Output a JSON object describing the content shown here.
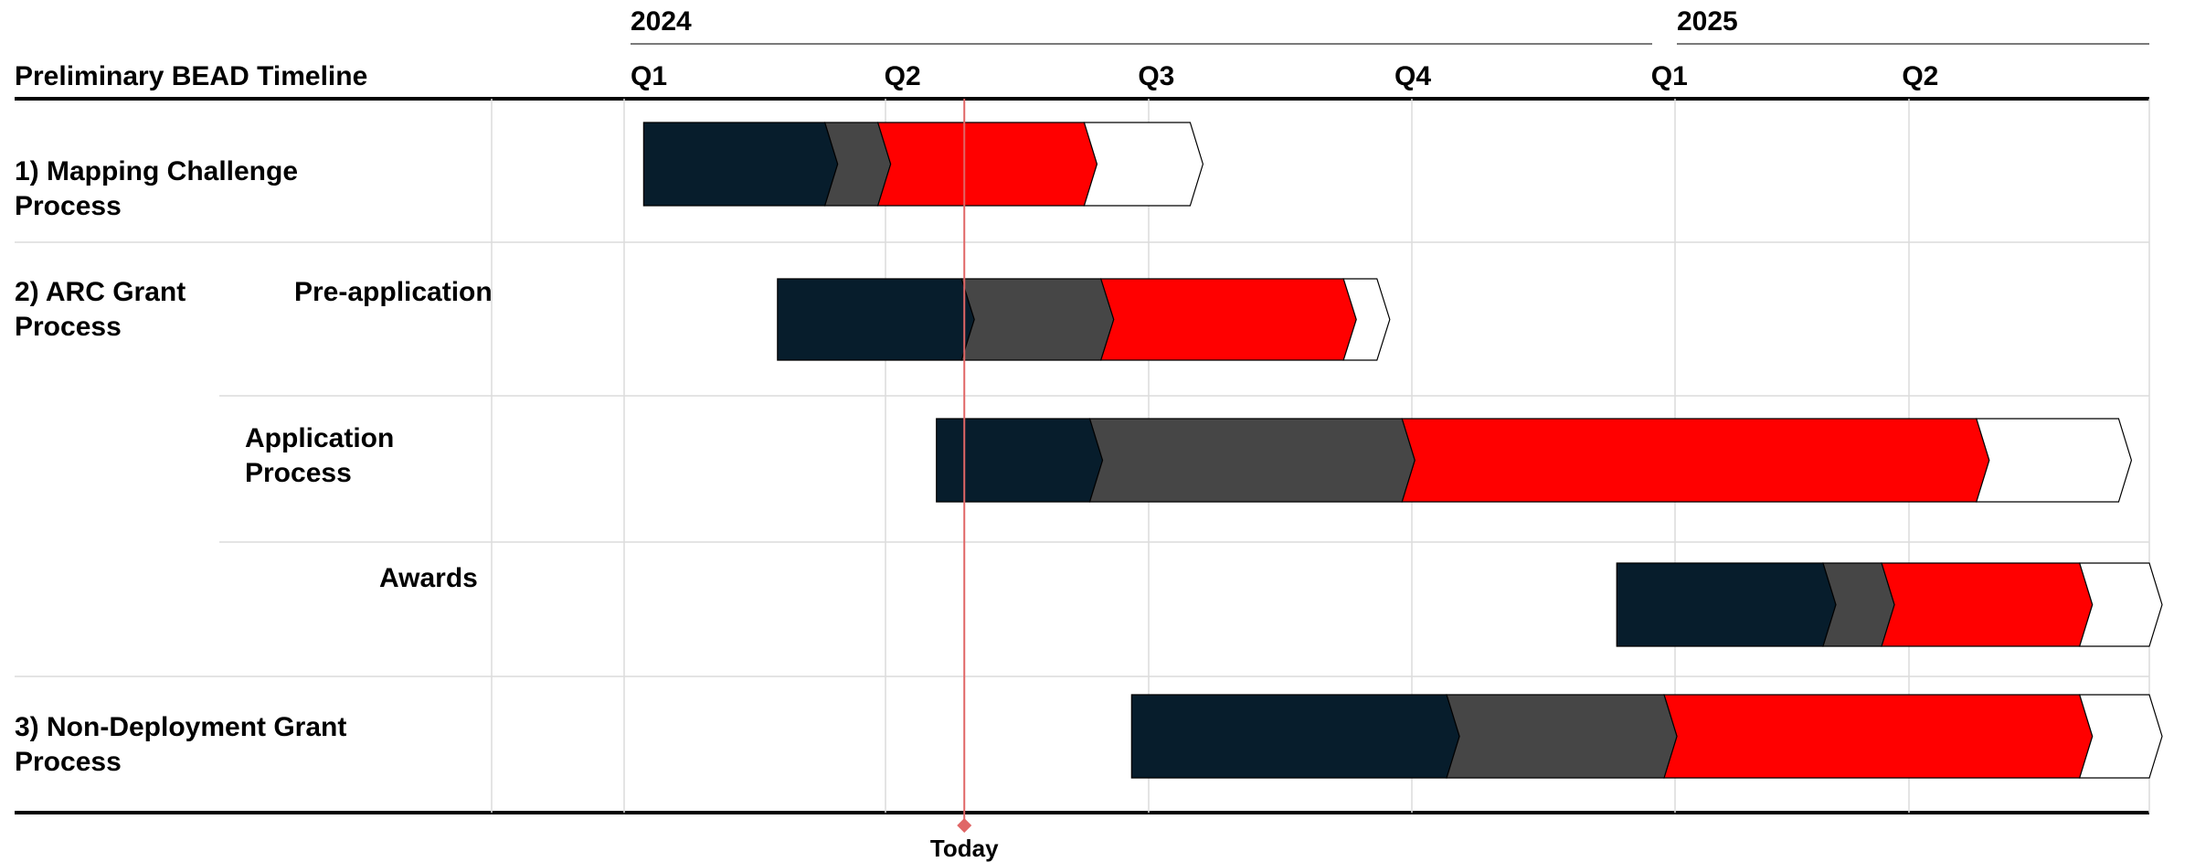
{
  "chart_data": {
    "type": "gantt",
    "title": "Preliminary BEAD Timeline",
    "years": [
      "2024",
      "2025"
    ],
    "quarters": [
      {
        "label": "Q1",
        "year": "2024",
        "start": "2024-01-01"
      },
      {
        "label": "Q2",
        "year": "2024",
        "start": "2024-04-01"
      },
      {
        "label": "Q3",
        "year": "2024",
        "start": "2024-07-01"
      },
      {
        "label": "Q4",
        "year": "2024",
        "start": "2024-10-01"
      },
      {
        "label": "Q1",
        "year": "2025",
        "start": "2025-01-01"
      },
      {
        "label": "Q2",
        "year": "2025",
        "start": "2025-04-01"
      }
    ],
    "x_range": [
      "2024-01-01",
      "2025-07-01"
    ],
    "today": {
      "label": "Today",
      "date": "2024-05-02"
    },
    "phase_colors": [
      "#071d2c",
      "#464646",
      "#ff0000",
      "#ffffff"
    ],
    "rows": [
      {
        "label_lines": [
          "1) Mapping Challenge",
          "Process"
        ],
        "sublabel_lines": [],
        "phases": [
          [
            "2024-01-08",
            "2024-03-13"
          ],
          [
            "2024-03-13",
            "2024-04-01"
          ],
          [
            "2024-04-01",
            "2024-06-14"
          ],
          [
            "2024-06-14",
            "2024-07-22"
          ]
        ]
      },
      {
        "label_lines": [
          "2) ARC Grant",
          "Process"
        ],
        "sublabel_lines": [
          "Pre-application"
        ],
        "phases": [
          [
            "2024-02-25",
            "2024-05-01"
          ],
          [
            "2024-05-01",
            "2024-06-20"
          ],
          [
            "2024-06-20",
            "2024-09-15"
          ],
          [
            "2024-09-15",
            "2024-09-27"
          ]
        ]
      },
      {
        "label_lines": [],
        "sublabel_lines": [
          "Application",
          "Process"
        ],
        "phases": [
          [
            "2024-04-22",
            "2024-06-16"
          ],
          [
            "2024-06-16",
            "2024-10-06"
          ],
          [
            "2024-10-06",
            "2025-04-30"
          ],
          [
            "2025-04-30",
            "2025-06-20"
          ]
        ]
      },
      {
        "label_lines": [],
        "sublabel_lines": [
          "Awards"
        ],
        "phases": [
          [
            "2024-12-22",
            "2025-03-06"
          ],
          [
            "2025-03-06",
            "2025-03-27"
          ],
          [
            "2025-03-27",
            "2025-06-06"
          ],
          [
            "2025-06-06",
            "2025-07-01"
          ]
        ]
      },
      {
        "label_lines": [
          "3) Non-Deployment Grant",
          "Process"
        ],
        "sublabel_lines": [],
        "phases": [
          [
            "2024-07-01",
            "2024-10-22"
          ],
          [
            "2024-10-22",
            "2025-01-08"
          ],
          [
            "2025-01-08",
            "2025-06-06"
          ],
          [
            "2025-06-06",
            "2025-07-01"
          ]
        ]
      }
    ],
    "grid": true,
    "legend": "none"
  }
}
